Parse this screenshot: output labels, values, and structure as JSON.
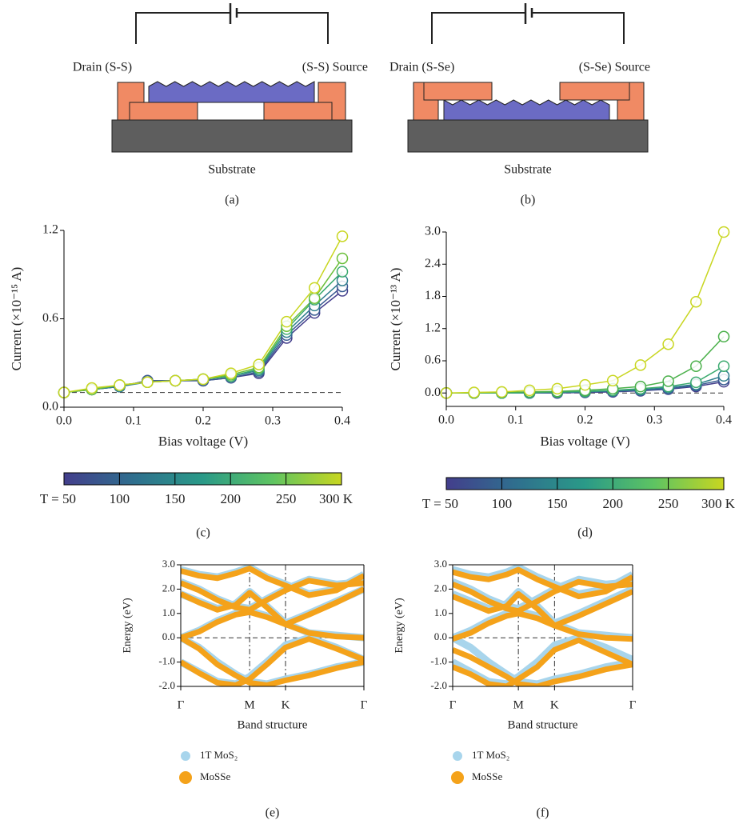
{
  "diagrams": [
    {
      "left_text": "Drain (S-S)",
      "right_text": "(S-S) Source",
      "substrate": "Substrate",
      "label": "(a)"
    },
    {
      "left_text": "Drain (S-Se)",
      "right_text": "(S-Se) Source",
      "substrate": "Substrate",
      "label": "(b)"
    }
  ],
  "chart_data": [
    {
      "type": "line",
      "panel_label": "(c)",
      "xlabel": "Bias voltage (V)",
      "ylabel": "Current (×10⁻¹⁵ A)",
      "x": [
        0,
        0.04,
        0.08,
        0.12,
        0.16,
        0.2,
        0.24,
        0.28,
        0.32,
        0.36,
        0.4
      ],
      "series": [
        {
          "color": "#433e8c",
          "values": [
            0.1,
            0.12,
            0.14,
            0.18,
            0.18,
            0.18,
            0.2,
            0.23,
            0.47,
            0.64,
            0.79
          ]
        },
        {
          "color": "#3a5b92",
          "values": [
            0.1,
            0.12,
            0.14,
            0.18,
            0.18,
            0.18,
            0.2,
            0.24,
            0.49,
            0.66,
            0.82
          ]
        },
        {
          "color": "#2f7f8e",
          "values": [
            0.1,
            0.12,
            0.14,
            0.17,
            0.18,
            0.19,
            0.21,
            0.25,
            0.51,
            0.69,
            0.86
          ]
        },
        {
          "color": "#3aaa6e",
          "values": [
            0.1,
            0.12,
            0.15,
            0.17,
            0.18,
            0.19,
            0.21,
            0.26,
            0.53,
            0.73,
            0.92
          ]
        },
        {
          "color": "#6bbf3a",
          "values": [
            0.1,
            0.12,
            0.15,
            0.17,
            0.18,
            0.19,
            0.22,
            0.27,
            0.55,
            0.74,
            1.01
          ]
        },
        {
          "color": "#c8d620",
          "values": [
            0.1,
            0.13,
            0.15,
            0.17,
            0.18,
            0.19,
            0.23,
            0.29,
            0.58,
            0.81,
            1.16
          ]
        }
      ],
      "xlim": [
        0,
        0.4
      ],
      "xticks": [
        {
          "value": 0,
          "label": "0.0"
        },
        0.1,
        0.2,
        0.3,
        0.4
      ],
      "ylim": [
        0,
        1.2
      ],
      "yticks": [
        {
          "value": 0,
          "label": "0.0"
        },
        0.6,
        1.2
      ],
      "reference_line": 0.1,
      "colorbar": {
        "clim": [
          50,
          300
        ],
        "colors": [
          "#433e8c",
          "#2f6f8e",
          "#2a9a88",
          "#5ec462",
          "#c8d620"
        ],
        "ticks": [
          {
            "value": 50,
            "label": "T = 50"
          },
          100,
          150,
          200,
          250,
          {
            "value": 300,
            "label": "300 K"
          }
        ]
      }
    },
    {
      "type": "line",
      "panel_label": "(d)",
      "xlabel": "Bias voltage (V)",
      "ylabel": "Current (×10⁻¹³ A)",
      "x": [
        0,
        0.04,
        0.08,
        0.12,
        0.16,
        0.2,
        0.24,
        0.28,
        0.32,
        0.36,
        0.4
      ],
      "series": [
        {
          "color": "#433e8c",
          "values": [
            0,
            0,
            0,
            0,
            0,
            0.01,
            0.02,
            0.04,
            0.07,
            0.12,
            0.21
          ]
        },
        {
          "color": "#3a5b92",
          "values": [
            0,
            0,
            0,
            0,
            0.01,
            0.02,
            0.03,
            0.05,
            0.08,
            0.14,
            0.25
          ]
        },
        {
          "color": "#2f7f8e",
          "values": [
            0,
            0,
            0,
            0,
            0.01,
            0.02,
            0.04,
            0.06,
            0.1,
            0.16,
            0.32
          ]
        },
        {
          "color": "#3aaa6e",
          "values": [
            0,
            0,
            0,
            0.01,
            0.02,
            0.03,
            0.05,
            0.08,
            0.12,
            0.2,
            0.5
          ]
        },
        {
          "color": "#4ab04a",
          "values": [
            0,
            0,
            0.01,
            0.02,
            0.03,
            0.05,
            0.08,
            0.12,
            0.22,
            0.5,
            1.05
          ]
        },
        {
          "color": "#c8d620",
          "values": [
            0,
            0.01,
            0.02,
            0.05,
            0.08,
            0.15,
            0.23,
            0.52,
            0.91,
            1.7,
            3.0
          ]
        }
      ],
      "xlim": [
        0,
        0.4
      ],
      "xticks": [
        {
          "value": 0,
          "label": "0.0"
        },
        0.1,
        0.2,
        0.3,
        0.4
      ],
      "ylim": [
        -0.25,
        3.0
      ],
      "yticks": [
        {
          "value": 0,
          "label": "0.0"
        },
        0.6,
        1.2,
        1.8,
        2.4,
        {
          "value": 3.0,
          "label": "3.0"
        }
      ],
      "reference_line": 0,
      "colorbar": {
        "clim": [
          50,
          300
        ],
        "colors": [
          "#433e8c",
          "#2f6f8e",
          "#2a9a88",
          "#5ec462",
          "#c8d620"
        ],
        "ticks": [
          {
            "value": 50,
            "label": "T = 50"
          },
          100,
          150,
          200,
          250,
          {
            "value": 300,
            "label": "300 K"
          }
        ]
      }
    },
    {
      "type": "band",
      "panel_label": "(e)",
      "xlabel": "Band structure",
      "ylabel": "Energy (eV)",
      "x": [
        0,
        0.1,
        0.2,
        0.3,
        0.376,
        0.47,
        0.572,
        0.7,
        0.85,
        1
      ],
      "series": [
        {
          "name": "1T MoS₂",
          "color": "#a8d5ec",
          "values": [
            [
              0.0,
              -0.4,
              -1.0,
              -1.5,
              -1.8,
              -1.9,
              -1.7,
              -1.5,
              -1.2,
              -1.0
            ],
            [
              -1.0,
              -1.4,
              -1.8,
              -1.9,
              -1.6,
              -1.0,
              -0.3,
              0.0,
              -0.4,
              -0.9
            ],
            [
              0.0,
              0.3,
              0.7,
              1.0,
              1.1,
              0.9,
              0.6,
              0.2,
              0.1,
              0.0
            ],
            [
              1.8,
              1.5,
              1.2,
              1.4,
              1.9,
              1.3,
              0.6,
              1.0,
              1.5,
              2.0
            ],
            [
              2.3,
              2.0,
              1.6,
              1.3,
              1.2,
              1.6,
              2.0,
              2.4,
              2.2,
              2.3
            ],
            [
              2.8,
              2.6,
              2.5,
              2.7,
              2.9,
              2.5,
              2.2,
              1.8,
              2.0,
              2.6
            ]
          ]
        },
        {
          "name": "MoSSe",
          "color": "#f4a21a",
          "values": [
            [
              0.0,
              -0.45,
              -1.1,
              -1.55,
              -1.85,
              -1.95,
              -1.75,
              -1.55,
              -1.25,
              -1.0
            ],
            [
              -1.0,
              -1.45,
              -1.85,
              -1.95,
              -1.7,
              -1.1,
              -0.4,
              -0.05,
              -0.45,
              -0.9
            ],
            [
              0.0,
              0.25,
              0.65,
              0.95,
              1.05,
              0.85,
              0.55,
              0.2,
              0.05,
              0.0
            ],
            [
              1.8,
              1.45,
              1.15,
              1.35,
              1.85,
              1.25,
              0.55,
              0.95,
              1.45,
              2.0
            ],
            [
              2.25,
              1.95,
              1.55,
              1.25,
              1.15,
              1.55,
              1.95,
              2.35,
              2.15,
              2.25
            ],
            [
              2.75,
              2.55,
              2.45,
              2.65,
              2.85,
              2.45,
              2.15,
              1.75,
              1.95,
              2.55
            ]
          ]
        }
      ],
      "xlim": [
        0,
        1
      ],
      "xticks": [
        {
          "value": 0,
          "label": "Γ"
        },
        {
          "value": 0.376,
          "label": "M"
        },
        {
          "value": 0.572,
          "label": "K"
        },
        {
          "value": 1,
          "label": "Γ"
        }
      ],
      "ylim": [
        -2,
        3
      ],
      "yticks": [
        {
          "value": -2,
          "label": "-2.0"
        },
        {
          "value": -1,
          "label": "-1.0"
        },
        {
          "value": 0,
          "label": "0.0"
        },
        {
          "value": 1,
          "label": "1.0"
        },
        {
          "value": 2,
          "label": "2.0"
        },
        {
          "value": 3,
          "label": "3.0"
        }
      ],
      "reference_line": 0
    },
    {
      "type": "band",
      "panel_label": "(f)",
      "xlabel": "Band structure",
      "ylabel": "Energy (eV)",
      "x": [
        0,
        0.1,
        0.2,
        0.3,
        0.365,
        0.47,
        0.566,
        0.7,
        0.85,
        1
      ],
      "series": [
        {
          "name": "1T MoS₂",
          "color": "#a8d5ec",
          "values": [
            [
              0.0,
              -0.4,
              -1.0,
              -1.5,
              -1.8,
              -1.9,
              -1.7,
              -1.5,
              -1.2,
              -1.0
            ],
            [
              -1.0,
              -1.4,
              -1.8,
              -1.9,
              -1.6,
              -1.0,
              -0.3,
              0.0,
              -0.4,
              -0.9
            ],
            [
              0.0,
              0.3,
              0.7,
              1.0,
              1.1,
              0.9,
              0.6,
              0.2,
              0.1,
              0.0
            ],
            [
              1.8,
              1.5,
              1.2,
              1.4,
              1.9,
              1.3,
              0.6,
              1.0,
              1.5,
              2.0
            ],
            [
              2.3,
              2.0,
              1.6,
              1.3,
              1.2,
              1.6,
              2.0,
              2.4,
              2.2,
              2.3
            ],
            [
              2.8,
              2.6,
              2.5,
              2.7,
              2.9,
              2.5,
              2.2,
              1.8,
              2.0,
              2.6
            ]
          ]
        },
        {
          "name": "MoSSe",
          "color": "#f4a21a",
          "values": [
            [
              -0.5,
              -0.8,
              -1.2,
              -1.6,
              -1.9,
              -2.0,
              -1.8,
              -1.6,
              -1.3,
              -1.1
            ],
            [
              -1.2,
              -1.5,
              -1.9,
              -2.0,
              -1.7,
              -1.2,
              -0.5,
              -0.1,
              -0.6,
              -1.1
            ],
            [
              -0.05,
              0.2,
              0.6,
              0.9,
              1.0,
              0.8,
              0.5,
              0.15,
              0.0,
              -0.05
            ],
            [
              1.7,
              1.4,
              1.1,
              1.3,
              1.8,
              1.2,
              0.5,
              0.9,
              1.4,
              1.9
            ],
            [
              2.2,
              1.9,
              1.5,
              1.2,
              1.1,
              1.5,
              1.9,
              2.3,
              2.1,
              2.2
            ],
            [
              2.7,
              2.5,
              2.4,
              2.6,
              2.8,
              2.4,
              2.1,
              1.7,
              1.9,
              2.5
            ]
          ]
        }
      ],
      "xlim": [
        0,
        1
      ],
      "xticks": [
        {
          "value": 0,
          "label": "Γ"
        },
        {
          "value": 0.365,
          "label": "M"
        },
        {
          "value": 0.566,
          "label": "K"
        },
        {
          "value": 1,
          "label": "Γ"
        }
      ],
      "ylim": [
        -2,
        3
      ],
      "yticks": [
        {
          "value": -2,
          "label": "-2.0"
        },
        {
          "value": -1,
          "label": "-1.0"
        },
        {
          "value": 0,
          "label": "0.0"
        },
        {
          "value": 1,
          "label": "1.0"
        },
        {
          "value": 2,
          "label": "2.0"
        },
        {
          "value": 3,
          "label": "3.0"
        }
      ],
      "reference_line": 0
    }
  ]
}
